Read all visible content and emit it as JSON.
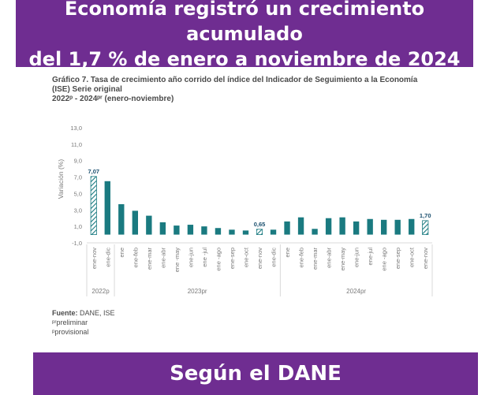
{
  "header": {
    "line1": "Economía registró un crecimiento acumulado",
    "line2": "del 1,7 % de enero a noviembre de 2024"
  },
  "footer_banner": "Según el DANE",
  "chart_title": {
    "line1": "Gráfico 7. Tasa de crecimiento año corrido del índice del Indicador de Seguimiento a la Economía",
    "line2": "(ISE) Serie original",
    "line3": "2022ᵖ - 2024ᵖʳ (enero-noviembre)"
  },
  "notes": {
    "source_label": "Fuente:",
    "source": "DANE, ISE",
    "pr": "ᵖʳpreliminar",
    "p": "ᵖprovisional"
  },
  "colors": {
    "banner": "#6f2d91",
    "bar": "#1a7a80",
    "hatch": "#1a7a80"
  },
  "chart_data": {
    "type": "bar",
    "ylabel": "Variación (%)",
    "ylim": [
      -1.0,
      13.0
    ],
    "yticks": [
      "13,0",
      "11,0",
      "9,0",
      "7,0",
      "5,0",
      "3,0",
      "1,0",
      "-1,0"
    ],
    "ytick_values": [
      13,
      11,
      9,
      7,
      5,
      3,
      1,
      -1
    ],
    "categories": [
      "ene-nov",
      "ene-dic",
      "ene",
      "ene-feb",
      "ene-mar",
      "ene-abr",
      "ene -may",
      "ene-jun",
      "ene -jul",
      "ene -ago",
      "ene-sep",
      "ene-oct",
      "ene-nov",
      "ene-dic",
      "ene",
      "ene-feb",
      "ene-mar",
      "ene-abr",
      "ene-may",
      "ene-jun",
      "ene-jul",
      "ene -ago",
      "ene-sep",
      "ene-oct",
      "ene-nov"
    ],
    "values": [
      7.07,
      6.5,
      3.7,
      2.9,
      2.3,
      1.5,
      1.1,
      1.2,
      1.0,
      0.8,
      0.6,
      0.5,
      0.65,
      0.6,
      1.6,
      2.1,
      0.7,
      2.0,
      2.1,
      1.6,
      1.9,
      1.8,
      1.8,
      1.9,
      1.7
    ],
    "highlighted": [
      0,
      12,
      24
    ],
    "data_labels": {
      "0": "7,07",
      "12": "0,65",
      "24": "1,70"
    },
    "groups": [
      {
        "label": "2022p",
        "start": 0,
        "end": 1
      },
      {
        "label": "2023pr",
        "start": 2,
        "end": 13
      },
      {
        "label": "2024pr",
        "start": 14,
        "end": 24
      }
    ]
  }
}
